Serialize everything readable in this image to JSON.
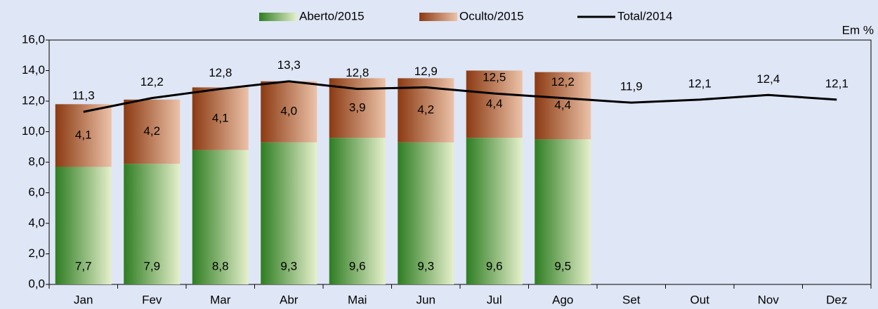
{
  "chart_data": {
    "type": "bar_line",
    "annotation": "Em %",
    "categories": [
      "Jan",
      "Fev",
      "Mar",
      "Abr",
      "Mai",
      "Jun",
      "Jul",
      "Ago",
      "Set",
      "Out",
      "Nov",
      "Dez"
    ],
    "series": [
      {
        "name": "Aberto/2015",
        "type": "bar",
        "color": "#2e7d22",
        "values": [
          7.7,
          7.9,
          8.8,
          9.3,
          9.6,
          9.3,
          9.6,
          9.5,
          null,
          null,
          null,
          null
        ],
        "value_labels": [
          "7,7",
          "7,9",
          "8,8",
          "9,3",
          "9,6",
          "9,3",
          "9,6",
          "9,5",
          null,
          null,
          null,
          null
        ]
      },
      {
        "name": "Oculto/2015",
        "type": "bar",
        "color": "#8b3a12",
        "values": [
          4.1,
          4.2,
          4.1,
          4.0,
          3.9,
          4.2,
          4.4,
          4.4,
          null,
          null,
          null,
          null
        ],
        "value_labels": [
          "4,1",
          "4,2",
          "4,1",
          "4,0",
          "3,9",
          "4,2",
          "4,4",
          "4,4",
          null,
          null,
          null,
          null
        ]
      },
      {
        "name": "Total/2014",
        "type": "line",
        "color": "#000000",
        "values": [
          11.3,
          12.2,
          12.8,
          13.3,
          12.8,
          12.9,
          12.5,
          12.2,
          11.9,
          12.1,
          12.4,
          12.1
        ],
        "value_labels": [
          "11,3",
          "12,2",
          "12,8",
          "13,3",
          "12,8",
          "12,9",
          "12,5",
          "12,2",
          "11,9",
          "12,1",
          "12,4",
          "12,1"
        ]
      }
    ],
    "ylim": [
      0,
      16
    ],
    "yticks": [
      {
        "value": 0,
        "label": "0,0"
      },
      {
        "value": 2,
        "label": "2,0"
      },
      {
        "value": 4,
        "label": "4,0"
      },
      {
        "value": 6,
        "label": "6,0"
      },
      {
        "value": 8,
        "label": "8,0"
      },
      {
        "value": 10,
        "label": "10,0"
      },
      {
        "value": 12,
        "label": "12,0"
      },
      {
        "value": 14,
        "label": "14,0"
      },
      {
        "value": 16,
        "label": "16,0"
      }
    ],
    "stacked": true,
    "grid": false,
    "legend": "top"
  }
}
